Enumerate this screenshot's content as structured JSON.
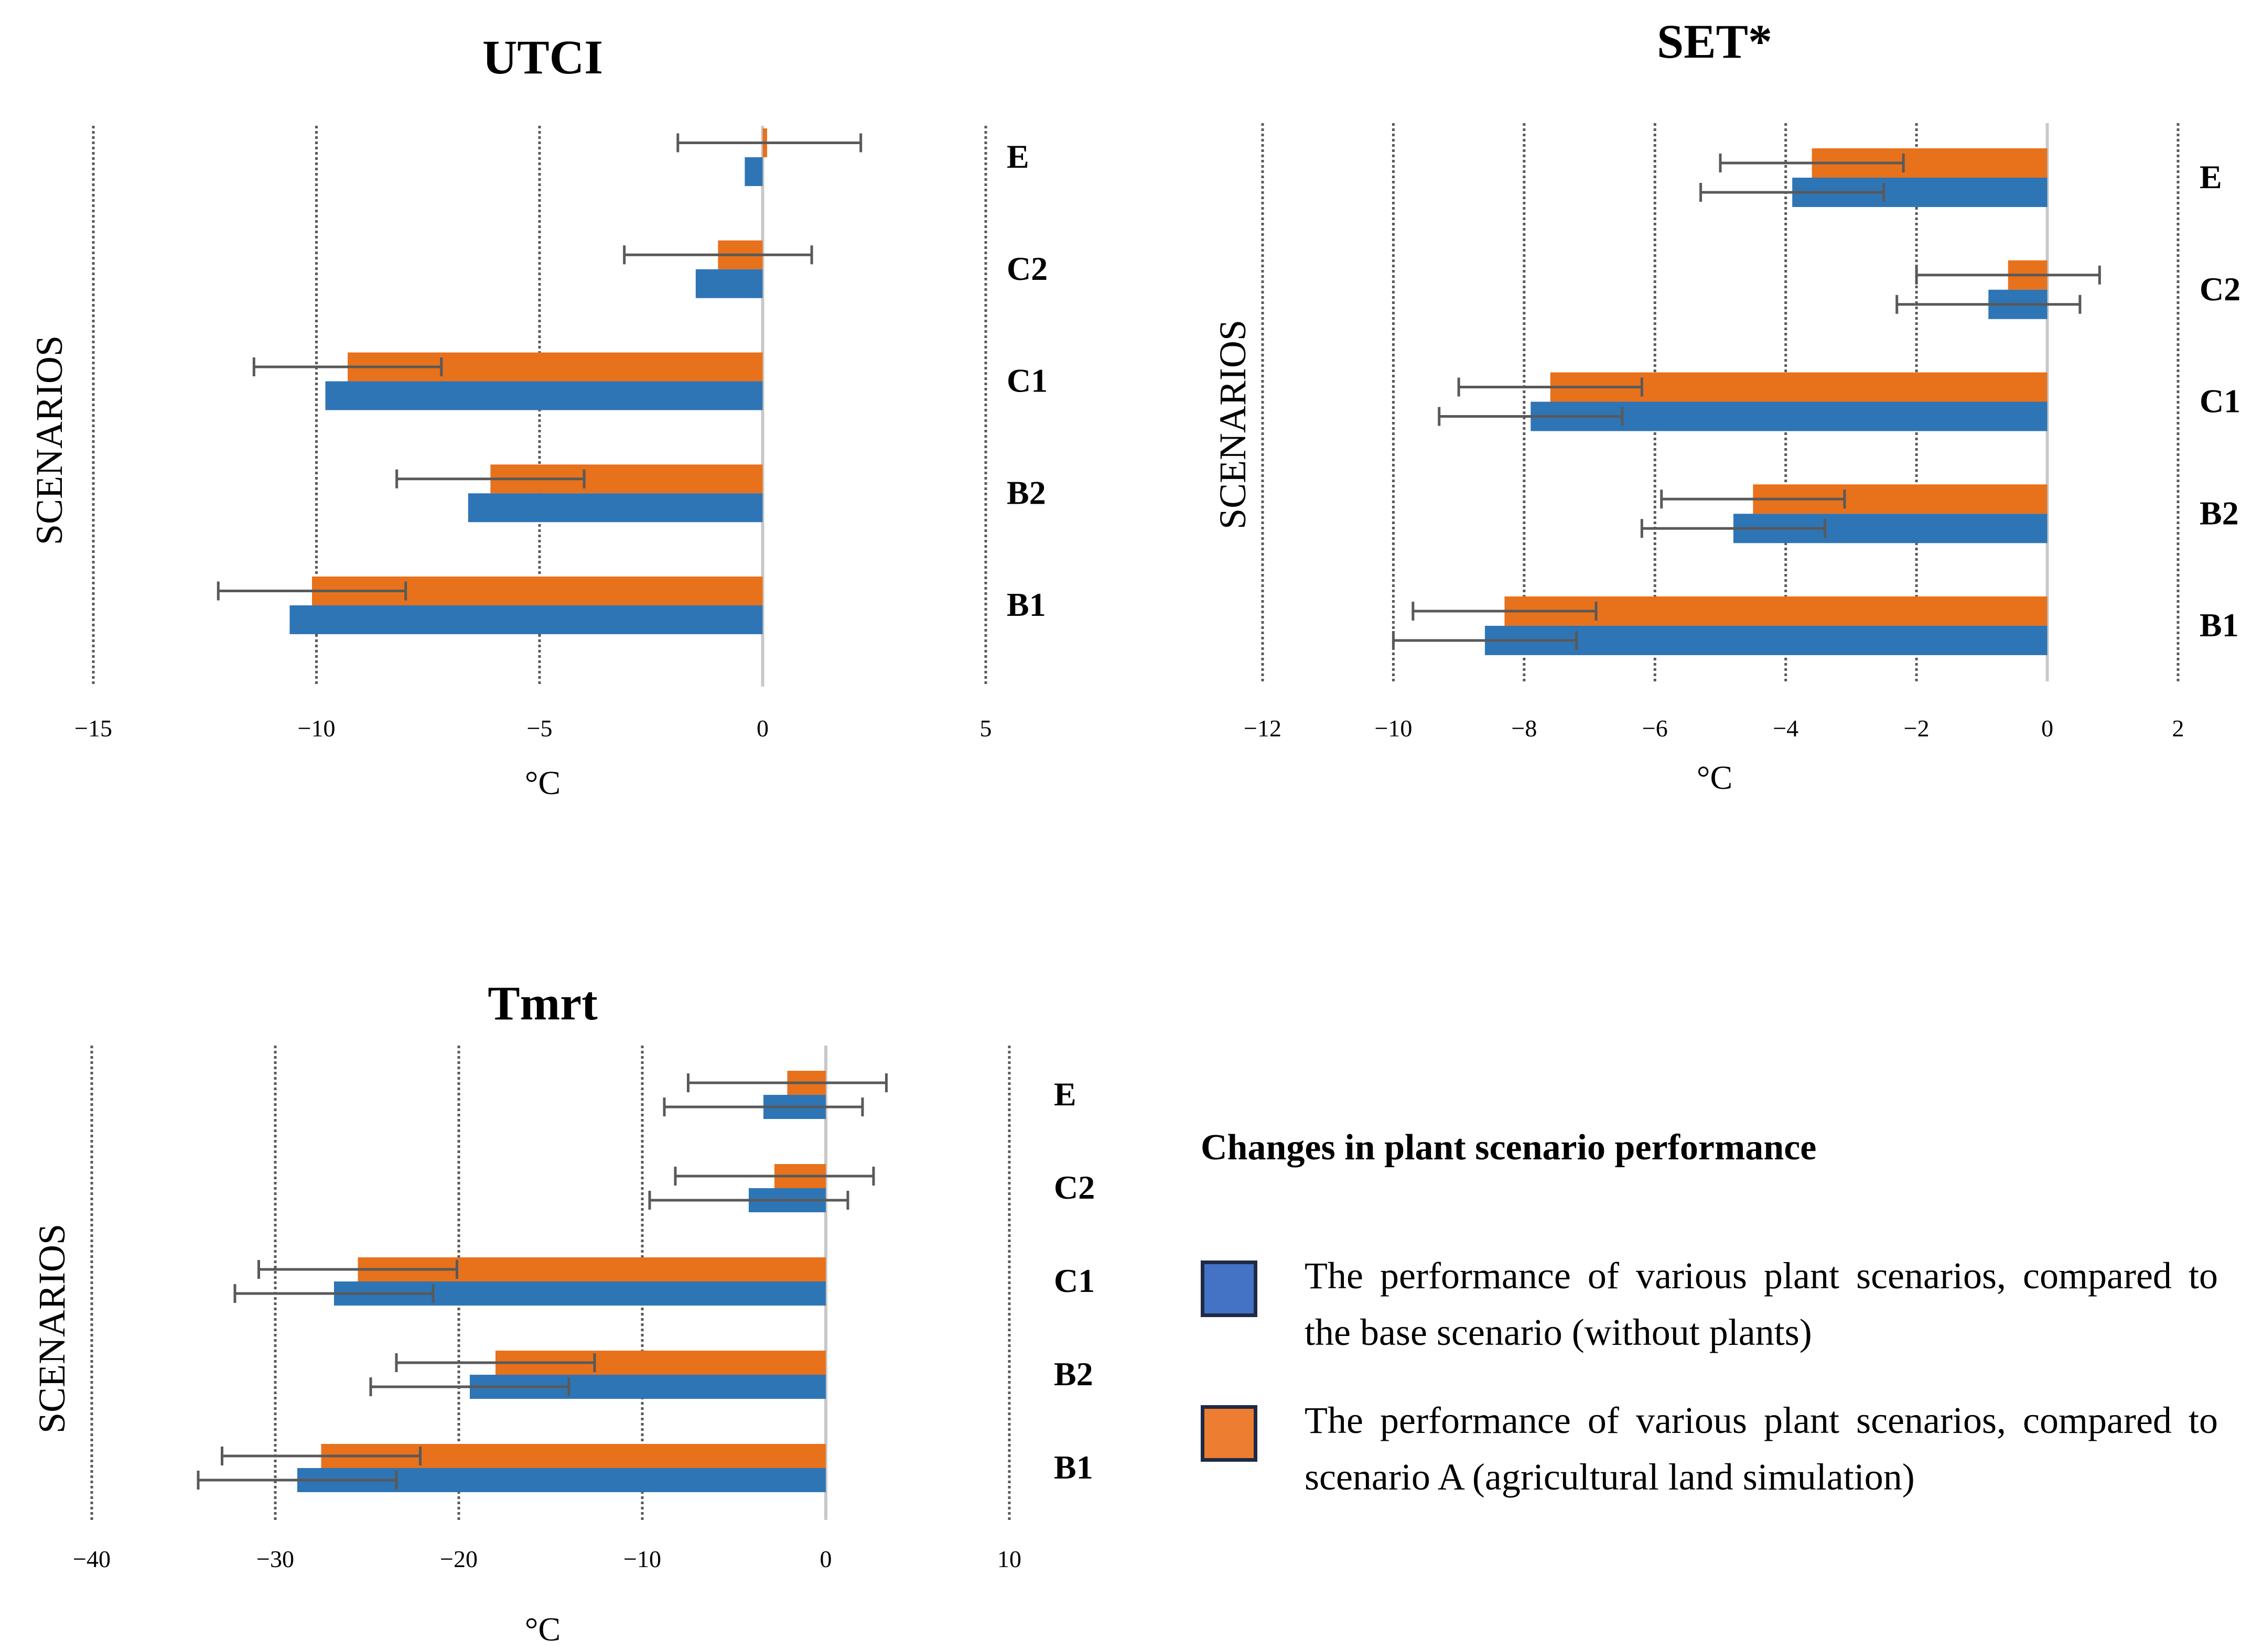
{
  "colors": {
    "blue": "#2e75b6",
    "orange": "#e8711c",
    "grid": "#595959",
    "zero": "#c8c8c8",
    "errbar": "#595959"
  },
  "legend": {
    "title": "Changes in plant scenario performance",
    "items": [
      {
        "label": "The performance of various plant scenarios, compared to the base scenario (without plants)",
        "color": "#4472c4"
      },
      {
        "label": "The performance of various plant scenarios, compared to scenario A (agricultural land simulation)",
        "color": "#ed7d31"
      }
    ]
  },
  "chart_data": [
    {
      "type": "bar",
      "orientation": "horizontal",
      "title": "UTCI",
      "xlabel": "°C",
      "ylabel": "SCENARIOS",
      "xlim": [
        -15,
        5
      ],
      "xticks": [
        -15,
        -10,
        -5,
        0,
        5
      ],
      "xtick_labels": [
        "−15",
        "−10",
        "−5",
        "0",
        "5"
      ],
      "categories": [
        "E",
        "C2",
        "C1",
        "B2",
        "B1"
      ],
      "series": [
        {
          "name": "compared to scenario A",
          "values": [
            0.1,
            -1.0,
            -9.3,
            -6.1,
            -10.1
          ],
          "err_low": [
            2.0,
            2.1,
            2.1,
            2.1,
            2.1
          ],
          "err_high": [
            2.1,
            2.1,
            2.1,
            2.1,
            2.1
          ]
        },
        {
          "name": "compared to base scenario",
          "values": [
            -0.4,
            -1.5,
            -9.8,
            -6.6,
            -10.6
          ],
          "err_low": null,
          "err_high": null
        }
      ]
    },
    {
      "type": "bar",
      "orientation": "horizontal",
      "title": "SET*",
      "xlabel": "°C",
      "ylabel": "SCENARIOS",
      "xlim": [
        -12,
        2
      ],
      "xticks": [
        -12,
        -10,
        -8,
        -6,
        -4,
        -2,
        0,
        2
      ],
      "xtick_labels": [
        "−12",
        "−10",
        "−8",
        "−6",
        "−4",
        "−2",
        "0",
        "2"
      ],
      "categories": [
        "E",
        "C2",
        "C1",
        "B2",
        "B1"
      ],
      "series": [
        {
          "name": "compared to scenario A",
          "values": [
            -3.6,
            -0.6,
            -7.6,
            -4.5,
            -8.3
          ],
          "err_low": [
            1.4,
            1.4,
            1.4,
            1.4,
            1.4
          ],
          "err_high": [
            1.4,
            1.4,
            1.4,
            1.4,
            1.4
          ]
        },
        {
          "name": "compared to base scenario",
          "values": [
            -3.9,
            -0.9,
            -7.9,
            -4.8,
            -8.6
          ],
          "err_low": [
            1.4,
            1.4,
            1.4,
            1.4,
            1.4
          ],
          "err_high": [
            1.4,
            1.4,
            1.4,
            1.4,
            1.4
          ]
        }
      ]
    },
    {
      "type": "bar",
      "orientation": "horizontal",
      "title": "Tmrt",
      "xlabel": "°C",
      "ylabel": "SCENARIOS",
      "xlim": [
        -40,
        10
      ],
      "xticks": [
        -40,
        -30,
        -20,
        -10,
        0,
        10
      ],
      "xtick_labels": [
        "−40",
        "−30",
        "−20",
        "−10",
        "0",
        "10"
      ],
      "categories": [
        "E",
        "C2",
        "C1",
        "B2",
        "B1"
      ],
      "series": [
        {
          "name": "compared to scenario A",
          "values": [
            -2.1,
            -2.8,
            -25.5,
            -18.0,
            -27.5
          ],
          "err_low": [
            5.4,
            5.4,
            5.4,
            5.4,
            5.4
          ],
          "err_high": [
            5.4,
            5.4,
            5.4,
            5.4,
            5.4
          ]
        },
        {
          "name": "compared to base scenario",
          "values": [
            -3.4,
            -4.2,
            -26.8,
            -19.4,
            -28.8
          ],
          "err_low": [
            5.4,
            5.4,
            5.4,
            5.4,
            5.4
          ],
          "err_high": [
            5.4,
            5.4,
            5.4,
            5.4,
            5.4
          ]
        }
      ]
    }
  ]
}
